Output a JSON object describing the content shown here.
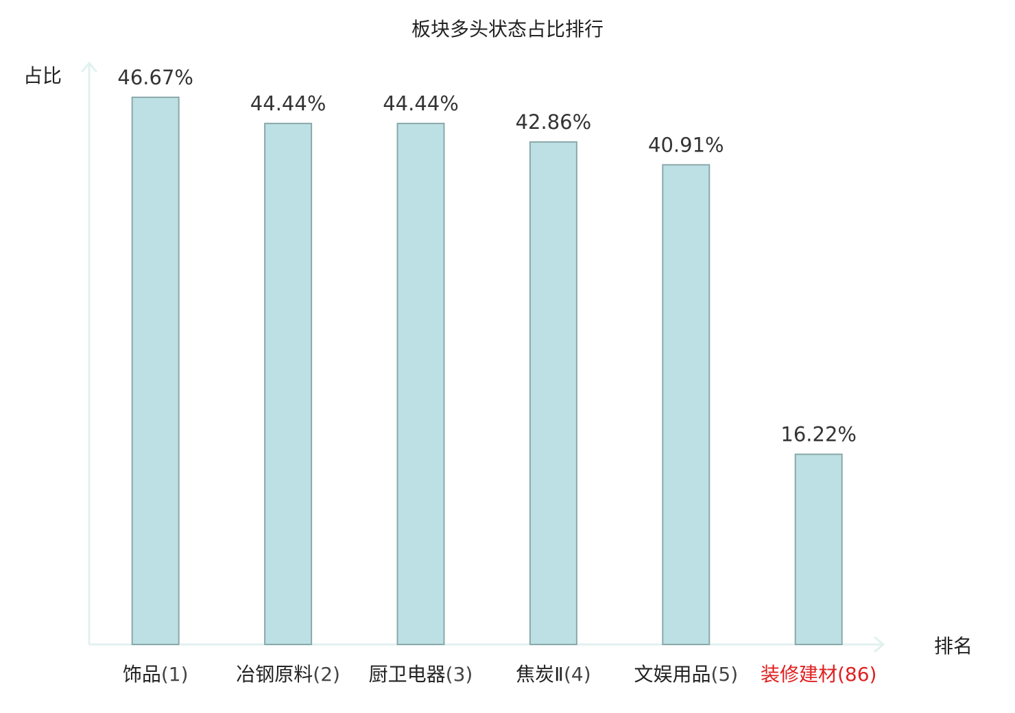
{
  "chart_data": {
    "type": "bar",
    "title": "板块多头状态占比排行",
    "xlabel": "排名",
    "ylabel": "占比",
    "categories": [
      {
        "name": "饰品",
        "rank": "(1)",
        "highlight": false
      },
      {
        "name": "冶钢原料",
        "rank": "(2)",
        "highlight": false
      },
      {
        "name": "厨卫电器",
        "rank": "(3)",
        "highlight": false
      },
      {
        "name": "焦炭Ⅱ",
        "rank": "(4)",
        "highlight": false
      },
      {
        "name": "文娱用品",
        "rank": "(5)",
        "highlight": false
      },
      {
        "name": "装修建材",
        "rank": "(86)",
        "highlight": true
      }
    ],
    "values": [
      46.67,
      44.44,
      44.44,
      42.86,
      40.91,
      16.22
    ],
    "value_labels": [
      "46.67%",
      "44.44%",
      "44.44%",
      "42.86%",
      "40.91%",
      "16.22%"
    ],
    "ylim": [
      0,
      50
    ],
    "grid": false,
    "legend": "none",
    "colors": {
      "bar_fill": "#bce0e3",
      "bar_stroke": "#8aa8aa",
      "axis": "#e0f2ef",
      "text": "#222222",
      "rank_text": "#444444",
      "highlight": "#e02020"
    }
  }
}
